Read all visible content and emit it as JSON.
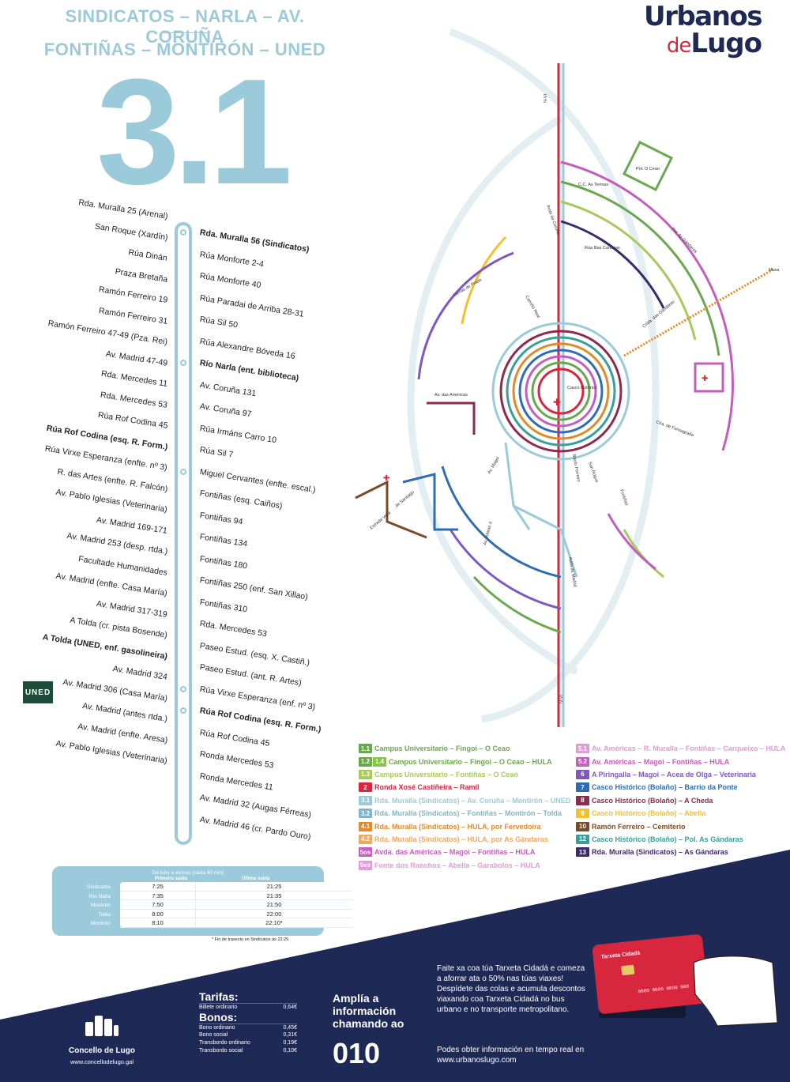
{
  "header": {
    "line1": "SINDICATOS – NARLA – AV. CORUÑA",
    "line2": "FONTIÑAS – MONTIRÓN – UNED",
    "route_number": "3.1"
  },
  "logo": {
    "urbanos": "Urbanos",
    "de": "de",
    "lugo": "Lugo"
  },
  "stops_left": [
    "Rda. Muralla 25 (Arenal)",
    "San Roque (Xardín)",
    "Rúa Dinán",
    "Praza Bretaña",
    "Ramón Ferreiro 19",
    "Ramón Ferreiro 31",
    "Ramón Ferreiro 47-49 (Pza. Rei)",
    "Av. Madrid 47-49",
    "Rda. Mercedes 11",
    "Rda. Mercedes 53",
    "Rúa Rof Codina 45",
    "Rúa Rof Codina (esq. R. Form.)",
    "Rúa Virxe Esperanza (enfte. nº 3)",
    "R. das Artes (enfte. R. Falcón)",
    "Av. Pablo Iglesias (Veterinaria)",
    "Av. Madrid 169-171",
    "Av. Madrid 253 (desp. rtda.)",
    "Facultade Humanidades",
    "Av. Madrid (enfte. Casa María)",
    "Av. Madrid 317-319",
    "A Tolda (cr. pista Bosende)",
    "A Tolda (UNED, enf. gasolineira)",
    "Av. Madrid 324",
    "Av. Madrid 306 (Casa María)",
    "Av. Madrid (antes rtda.)",
    "Av. Madrid (enfte. Aresa)",
    "Av. Pablo Iglesias (Veterinaria)"
  ],
  "stops_right": [
    "Rda. Muralla 56 (Sindicatos)",
    "Rúa Monforte 2-4",
    "Rúa Monforte 40",
    "Rúa Paradai de Arriba 28-31",
    "Rúa Sil 50",
    "Rúa Alexandre Bóveda 16",
    "Río Narla (ent. biblioteca)",
    "Av. Coruña 131",
    "Av. Coruña 97",
    "Rúa Irmáns Carro 10",
    "Rúa Sil 7",
    "Miguel Cervantes (enfte. escal.)",
    "Fontiñas (esq. Caiños)",
    "Fontiñas 94",
    "Fontiñas 134",
    "Fontiñas 180",
    "Fontiñas 250 (enf. San Xillao)",
    "Fontiñas 310",
    "Rda. Mercedes 53",
    "Paseo Estud. (esq. X. Castiñ.)",
    "Paseo Estud. (ant. R. Artes)",
    "Rúa Virxe Esperanza (enf. nº 3)",
    "Rúa Rof Codina (esq. R. Form.)",
    "Rúa Rof Codina 45",
    "Ronda Mercedes 53",
    "Ronda Mercedes 11",
    "Av. Madrid 32 (Augas Férreas)",
    "Av. Madrid 46 (cr. Pardo Ouro)"
  ],
  "uned_badge": "UNED",
  "schedule": {
    "title": "De luns a venres",
    "subtitle": "(cada 60 min)",
    "col1": "Primeira saída",
    "col2": "Última saída",
    "rows": [
      {
        "stop": "Sindicatos",
        "first": "7:25",
        "last": "21:25"
      },
      {
        "stop": "Río Narla",
        "first": "7:35",
        "last": "21:35"
      },
      {
        "stop": "Montirón",
        "first": "7:50",
        "last": "21:50"
      },
      {
        "stop": "Tolda",
        "first": "8:00",
        "last": "22:00"
      },
      {
        "stop": "Montirón",
        "first": "8:10",
        "last": "22:10*"
      }
    ],
    "note": "* Fin de traxecto en Sindicatos ás 22:25"
  },
  "legend_left": [
    {
      "code": "1.1",
      "text": "Campus Universitario – Fingoi – O Ceao",
      "color": "#6aa84f"
    },
    {
      "code": "1.2",
      "code2": "1.4",
      "text": "Campus Universitario – Fingoi – O Ceao – HULA",
      "color": "#6aa84f",
      "color2": "#8bc34a"
    },
    {
      "code": "1.3",
      "text": "Campus Universitario – Fontiñas – O Ceao",
      "color": "#a9c95b"
    },
    {
      "code": "2",
      "text": "Ronda Xosé Castiñeira – Ramil",
      "color": "#d7263d"
    },
    {
      "code": "3.1",
      "text": "Rda. Muralla (Sindicatos) – Av. Coruña – Montirón – UNED",
      "color": "#9bcadb"
    },
    {
      "code": "3.2",
      "text": "Rda. Muralla (Sindicatos) – Fontiñas – Montirón – Tolda",
      "color": "#7fb4c9"
    },
    {
      "code": "4.1",
      "text": "Rda. Muralla (Sindicatos) – HULA, por Fervedoira",
      "color": "#e08a2c"
    },
    {
      "code": "4.2",
      "text": "Rda. Muralla (Sindicatos) – HULA, por As Gándaras",
      "color": "#f0a860"
    },
    {
      "code": "5os",
      "text": "Avda. das Américas – Magoi – Fontiñas – HULA",
      "color": "#c45dbd"
    },
    {
      "code": "5es",
      "text": "Fonte dos Ranchos – Abella – Garabolos – HULA",
      "color": "#e39ad9"
    }
  ],
  "legend_right": [
    {
      "code": "5.1",
      "text": "Av. Américas – R. Muralla – Fontiñas – Carqueixo – HULA",
      "color": "#e39ad9"
    },
    {
      "code": "5.2",
      "text": "Av. Américas – Magoi – Fontiñas – HULA",
      "color": "#c45dbd"
    },
    {
      "code": "6",
      "text": "A Piringalla – Magoi – Acea de Olga – Veterinaria",
      "color": "#7e57c2"
    },
    {
      "code": "7",
      "text": "Casco Histórico (Bolaño) – Barrio da Ponte",
      "color": "#2e6db4"
    },
    {
      "code": "8",
      "text": "Casco Histórico (Bolaño) – A Cheda",
      "color": "#8e2a4e"
    },
    {
      "code": "9",
      "text": "Casco Histórico (Bolaño) – Abella",
      "color": "#f2c12e"
    },
    {
      "code": "10",
      "text": "Ramón Ferreiro – Cemiterio",
      "color": "#7a4a2a"
    },
    {
      "code": "12",
      "text": "Casco Histórico (Bolaño) – Pol. As Gándaras",
      "color": "#3a9e9a"
    },
    {
      "code": "13",
      "text": "Rda. Muralla (Sindicatos) – As Gándaras",
      "color": "#3b2a6e"
    }
  ],
  "map_labels": {
    "nvi_top": "N-VI",
    "nvi_bottom": "N-VI",
    "pol_ceao": "Pol. O Ceao",
    "cc_as_termas": "C.C. As Termas",
    "pol_gandaras": "Pol. As Gándaras",
    "avda_coruna": "Avda da Coruña",
    "rua_illas_canarias": "Rúa Illas Canarias",
    "lamas_prado": "Lamas de Prado",
    "camino_real": "Camiño Real",
    "crtda_gandaras": "Crtda. das Gándaras",
    "muxa": "Muxa",
    "av_americas": "Av. das Américas",
    "casco_historico": "Casco histórico",
    "ctra_fonsagrada": "Ctra. de Fonsagrada",
    "barrio_ferreiro": "Barrio Ferreiro",
    "san_roque": "San Roque",
    "av_magoi": "Av. Magoi",
    "estrada_vella": "Estrada Vella",
    "de_santiago": "de Santiago",
    "av_infante": "Av. Infante X",
    "fontinas": "Fontiñas",
    "avda_madrid": "Avda de Madrid"
  },
  "footer": {
    "concello_name": "Concello de Lugo",
    "concello_url": "www.concellodelugo.gal",
    "tarifas_title": "Tarifas:",
    "billete_label": "Billete ordinario",
    "billete_price": "0,64€",
    "bonos_title": "Bonos:",
    "bonos": [
      {
        "label": "Bono ordinario",
        "price": "0,45€"
      },
      {
        "label": "Bono social",
        "price": "0,31€"
      },
      {
        "label": "Transbordo ordinario",
        "price": "0,19€"
      },
      {
        "label": "Transbordo social",
        "price": "0,10€"
      }
    ],
    "ampl_line1": "Amplía a",
    "ampl_line2": "información",
    "ampl_line3": "chamando ao",
    "phone": "010",
    "promo_text": "Faite xa coa túa Tarxeta Cidadá e comeza a aforrar ata o 50% nas túas viaxes! Despídete das colas e acumula descontos viaxando coa Tarxeta Cidadá no bus urbano e no transporte metropolitano.",
    "promo2_text": "Podes obter información en tempo real en www.urbanoslugo.com",
    "card_title": "Tarxeta Cidadá",
    "card_number": "0000 0000 0000 000"
  },
  "colors": {
    "route": "#9bcadb",
    "navy": "#1e2a55",
    "red": "#d7263d"
  }
}
